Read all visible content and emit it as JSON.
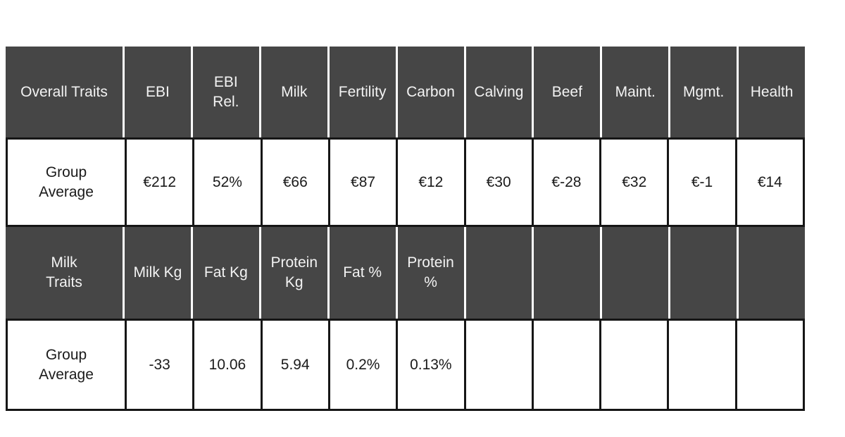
{
  "colors": {
    "header_background": "#464646",
    "header_text": "#f3f3f3",
    "grid_line": "#161616",
    "value_text": "#1b1b1b",
    "page_background": "#ffffff"
  },
  "display": {
    "rows": [
      {
        "kind": "header",
        "cells": [
          "Overall Traits",
          "EBI",
          "EBI\nRel.",
          "Milk",
          "Fertility",
          "Carbon",
          "Calving",
          "Beef",
          "Maint.",
          "Mgmt.",
          "Health"
        ]
      },
      {
        "kind": "data",
        "cells": [
          "Group\nAverage",
          "€212",
          "52%",
          "€66",
          "€87",
          "€12",
          "€30",
          "€-28",
          "€32",
          "€-1",
          "€14"
        ]
      },
      {
        "kind": "header",
        "cells": [
          "Milk\nTraits",
          "Milk Kg",
          "Fat Kg",
          "Protein\nKg",
          "Fat %",
          "Protein\n%",
          "",
          "",
          "",
          "",
          ""
        ]
      },
      {
        "kind": "data",
        "cells": [
          "Group\nAverage",
          "-33",
          "10.06",
          "5.94",
          "0.2%",
          "0.13%",
          "",
          "",
          "",
          "",
          ""
        ]
      }
    ]
  },
  "chart_data": {
    "type": "table",
    "sections": [
      {
        "section": "Overall Traits",
        "columns": [
          "EBI",
          "EBI Rel.",
          "Milk",
          "Fertility",
          "Carbon",
          "Calving",
          "Beef",
          "Maint.",
          "Mgmt.",
          "Health"
        ],
        "rows": [
          {
            "label": "Group Average",
            "values": [
              "€212",
              "52%",
              "€66",
              "€87",
              "€12",
              "€30",
              "€-28",
              "€32",
              "€-1",
              "€14"
            ]
          }
        ]
      },
      {
        "section": "Milk Traits",
        "columns": [
          "Milk Kg",
          "Fat Kg",
          "Protein Kg",
          "Fat %",
          "Protein %",
          "",
          "",
          "",
          "",
          ""
        ],
        "rows": [
          {
            "label": "Group Average",
            "values": [
              "-33",
              "10.06",
              "5.94",
              "0.2%",
              "0.13%",
              "",
              "",
              "",
              "",
              ""
            ]
          }
        ]
      }
    ]
  }
}
